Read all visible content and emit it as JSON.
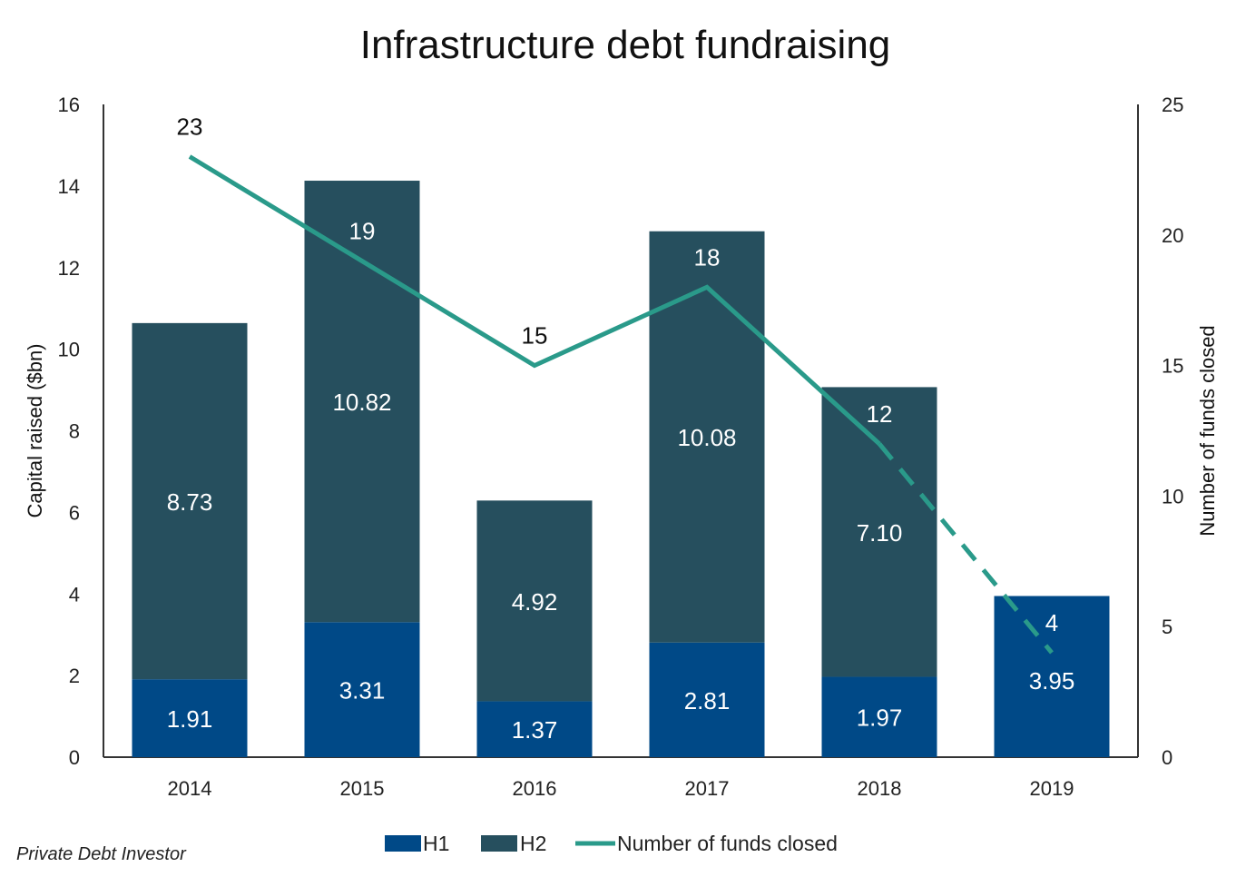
{
  "chart_data": {
    "type": "bar",
    "title": "Infrastructure debt fundraising",
    "categories": [
      "2014",
      "2015",
      "2016",
      "2017",
      "2018",
      "2019"
    ],
    "series": [
      {
        "name": "H1",
        "kind": "stacked-bar",
        "axis": "left",
        "color": "#004987",
        "values": [
          1.91,
          3.31,
          1.37,
          2.81,
          1.97,
          3.95
        ]
      },
      {
        "name": "H2",
        "kind": "stacked-bar",
        "axis": "left",
        "color": "#264F5E",
        "values": [
          8.73,
          10.82,
          4.92,
          10.08,
          7.1,
          null
        ]
      },
      {
        "name": "Number of funds closed",
        "kind": "line",
        "axis": "right",
        "color": "#2A9A8A",
        "values": [
          23,
          19,
          15,
          18,
          12,
          4
        ],
        "dashed_from_index": 4
      }
    ],
    "bar_labels": {
      "H1": [
        "1.91",
        "3.31",
        "1.37",
        "2.81",
        "1.97",
        "3.95"
      ],
      "H2": [
        "8.73",
        "10.82",
        "4.92",
        "10.08",
        "7.10",
        ""
      ]
    },
    "line_labels": [
      "23",
      "19",
      "15",
      "18",
      "12",
      "4"
    ],
    "ylabel": "Capital raised ($bn)",
    "ylim": [
      0,
      16
    ],
    "yticks": [
      0,
      2,
      4,
      6,
      8,
      10,
      12,
      14,
      16
    ],
    "y2label": "Number of funds closed",
    "y2lim": [
      0,
      25
    ],
    "y2ticks": [
      0,
      5,
      10,
      15,
      20,
      25
    ],
    "grid": false,
    "legend": "bottom-center"
  },
  "source": "Private Debt Investor"
}
